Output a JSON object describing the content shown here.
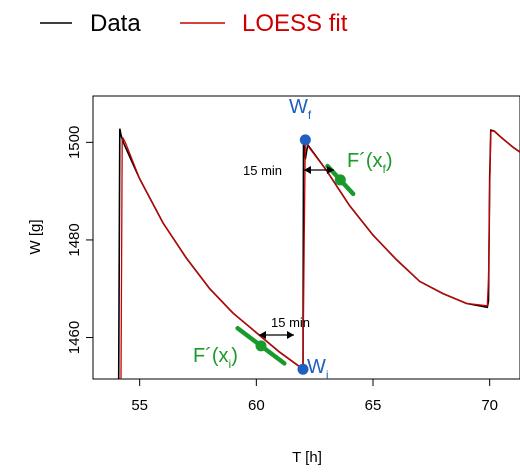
{
  "legend": {
    "items": [
      {
        "label": "Data",
        "color": "#000000"
      },
      {
        "label": "LOESS fit",
        "color": "#cc0000"
      }
    ]
  },
  "annotations": {
    "wf": {
      "main": "W",
      "sub": "f"
    },
    "wi": {
      "main": "W",
      "sub": "i"
    },
    "ff": {
      "main": "F´(x",
      "sub": "f",
      "close": ")"
    },
    "fi": {
      "main": "F´(x",
      "sub": "i",
      "close": ")"
    },
    "gap_top": "15 min",
    "gap_bottom": "15 min"
  },
  "colors": {
    "data": "#000000",
    "fit": "#cc0000",
    "highlight": "#1f5fbf",
    "tangent": "#1a9a2a"
  },
  "chart_data": {
    "type": "line",
    "xlabel": "T [h]",
    "ylabel": "W [g]",
    "xlim": [
      53.0,
      71.3
    ],
    "ylim": [
      1451.5,
      1509.5
    ],
    "xticks": [
      55,
      60,
      65,
      70
    ],
    "yticks": [
      1460,
      1480,
      1500
    ],
    "legend_position": "top",
    "grid": false,
    "series": [
      {
        "name": "Data",
        "x": [
          54.1,
          54.15,
          54.2,
          54.3,
          55,
          56,
          57,
          58,
          59,
          60,
          61,
          62.0,
          62.02,
          62.1,
          62.2,
          63,
          64,
          65,
          66,
          67,
          68,
          69,
          69.9,
          69.95,
          70.0,
          70.05,
          70.2,
          70.5,
          71,
          71.3
        ],
        "y": [
          1451.5,
          1502.8,
          1501.5,
          1500.0,
          1492.5,
          1483.5,
          1476.3,
          1470.0,
          1465.0,
          1461.0,
          1457.0,
          1453.5,
          1500.5,
          1496.5,
          1499.5,
          1494.3,
          1487.0,
          1481.0,
          1476.0,
          1471.5,
          1469.0,
          1467.0,
          1466.2,
          1467.5,
          1493.0,
          1502.5,
          1502.3,
          1501.0,
          1499.0,
          1498.0
        ]
      },
      {
        "name": "LOESS fit",
        "x": [
          54.2,
          54.25,
          54.3,
          54.4,
          55,
          56,
          57,
          58,
          59,
          60,
          61,
          62.0,
          62.05,
          62.1,
          62.2,
          63,
          64,
          65,
          66,
          67,
          68,
          69,
          69.9,
          69.95,
          70.0,
          70.05,
          70.2,
          70.5,
          71,
          71.3
        ],
        "y": [
          1451.5,
          1500.5,
          1500.8,
          1499.8,
          1492.5,
          1483.5,
          1476.3,
          1470.0,
          1465.0,
          1461.0,
          1457.0,
          1453.5,
          1480.0,
          1500.3,
          1499.3,
          1494.3,
          1487.0,
          1481.0,
          1476.0,
          1471.5,
          1469.0,
          1467.0,
          1466.5,
          1472.0,
          1490.0,
          1502.3,
          1502.3,
          1501.0,
          1499.0,
          1498.0
        ]
      }
    ],
    "points": [
      {
        "label": "Wf",
        "x": 62.1,
        "y": 1500.5
      },
      {
        "label": "Wi",
        "x": 62.0,
        "y": 1453.5
      }
    ],
    "tangents": [
      {
        "label": "F´(xf)",
        "x": 63.6,
        "y": 1492.3,
        "slope": -5.2,
        "half_width": 0.55
      },
      {
        "label": "F´(xi)",
        "x": 60.2,
        "y": 1458.3,
        "slope": -3.6,
        "half_width": 1.0
      }
    ]
  }
}
